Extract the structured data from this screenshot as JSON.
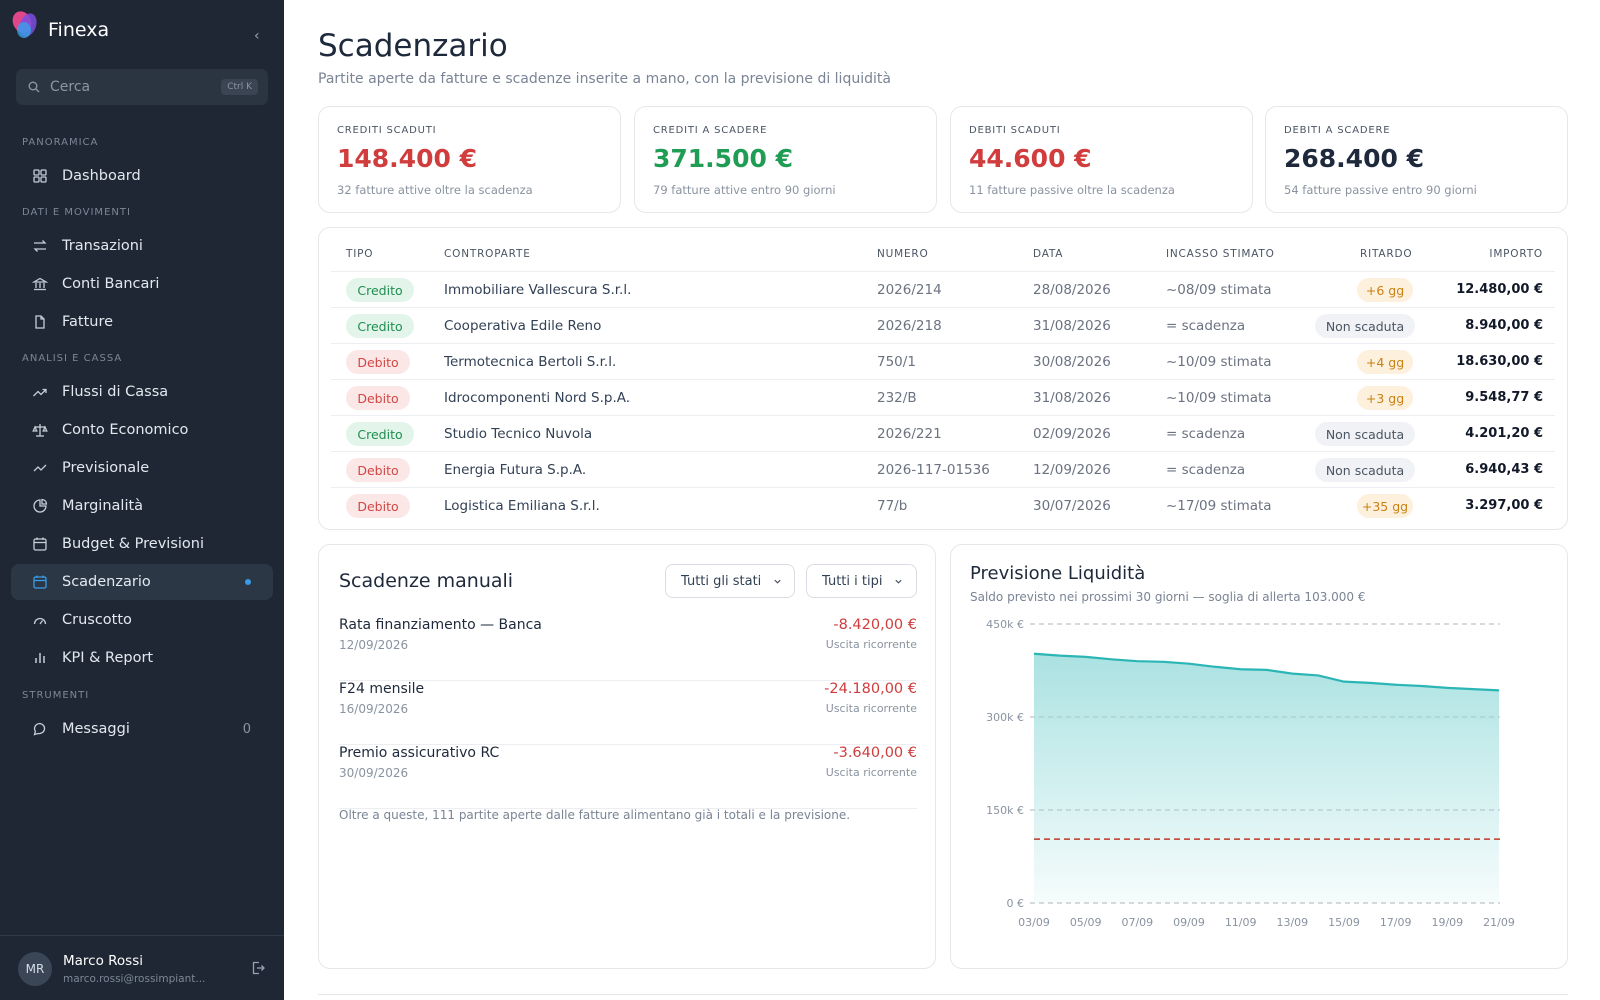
{
  "app": {
    "name": "Finexa"
  },
  "search": {
    "placeholder": "Cerca",
    "shortcut": "Ctrl K"
  },
  "sidebar": {
    "sections": [
      "PANORAMICA",
      "DATI E MOVIMENTI",
      "ANALISI E CASSA",
      "STRUMENTI"
    ],
    "items": [
      {
        "label": "Dashboard",
        "icon": "dashboard-icon"
      },
      {
        "label": "Transazioni",
        "icon": "transfer-icon"
      },
      {
        "label": "Conti Bancari",
        "icon": "bank-icon"
      },
      {
        "label": "Fatture",
        "icon": "document-icon"
      },
      {
        "label": "Flussi di Cassa",
        "icon": "trend-icon"
      },
      {
        "label": "Conto Economico",
        "icon": "scale-icon"
      },
      {
        "label": "Previsionale",
        "icon": "line-chart-icon"
      },
      {
        "label": "Marginalità",
        "icon": "pie-icon"
      },
      {
        "label": "Budget & Previsioni",
        "icon": "calendar-icon"
      },
      {
        "label": "Scadenzario",
        "icon": "calendar-icon",
        "active": true
      },
      {
        "label": "Cruscotto",
        "icon": "gauge-icon"
      },
      {
        "label": "KPI & Report",
        "icon": "bar-chart-icon"
      },
      {
        "label": "Messaggi",
        "icon": "chat-icon",
        "count": "0"
      }
    ]
  },
  "user": {
    "initials": "MR",
    "name": "Marco Rossi",
    "email": "marco.rossi@rossimpiant..."
  },
  "page": {
    "title": "Scadenzario",
    "subtitle": "Partite aperte da fatture e scadenze inserite a mano, con la previsione di liquidità"
  },
  "kpis": [
    {
      "title": "CREDITI SCADUTI",
      "value": "148.400 €",
      "note": "32 fatture attive oltre la scadenza",
      "color": "#d13c3c"
    },
    {
      "title": "CREDITI A SCADERE",
      "value": "371.500 €",
      "note": "79 fatture attive entro 90 giorni",
      "color": "#1f9d55"
    },
    {
      "title": "DEBITI SCADUTI",
      "value": "44.600 €",
      "note": "11 fatture passive oltre la scadenza",
      "color": "#d13c3c"
    },
    {
      "title": "DEBITI A SCADERE",
      "value": "268.400 €",
      "note": "54 fatture passive entro 90 giorni",
      "color": "#1e293b"
    }
  ],
  "table": {
    "headers": [
      "TIPO",
      "CONTROPARTE",
      "NUMERO",
      "DATA",
      "INCASSO STIMATO",
      "RITARDO",
      "IMPORTO"
    ],
    "rows": [
      {
        "tipo": "Credito",
        "controparte": "Immobiliare Vallescura S.r.l.",
        "numero": "2026/214",
        "data": "28/08/2026",
        "stimato": "~08/09 stimata",
        "ritardo": "+6 gg",
        "importo": "12.480,00 €"
      },
      {
        "tipo": "Credito",
        "controparte": "Cooperativa Edile Reno",
        "numero": "2026/218",
        "data": "31/08/2026",
        "stimato": "= scadenza",
        "ritardo": "Non scaduta",
        "importo": "8.940,00 €"
      },
      {
        "tipo": "Debito",
        "controparte": "Termotecnica Bertoli S.r.l.",
        "numero": "750/1",
        "data": "30/08/2026",
        "stimato": "~10/09 stimata",
        "ritardo": "+4 gg",
        "importo": "18.630,00 €"
      },
      {
        "tipo": "Debito",
        "controparte": "Idrocomponenti Nord S.p.A.",
        "numero": "232/B",
        "data": "31/08/2026",
        "stimato": "~10/09 stimata",
        "ritardo": "+3 gg",
        "importo": "9.548,77 €"
      },
      {
        "tipo": "Credito",
        "controparte": "Studio Tecnico Nuvola",
        "numero": "2026/221",
        "data": "02/09/2026",
        "stimato": "= scadenza",
        "ritardo": "Non scaduta",
        "importo": "4.201,20 €"
      },
      {
        "tipo": "Debito",
        "controparte": "Energia Futura S.p.A.",
        "numero": "2026-117-01536",
        "data": "12/09/2026",
        "stimato": "= scadenza",
        "ritardo": "Non scaduta",
        "importo": "6.940,43 €"
      },
      {
        "tipo": "Debito",
        "controparte": "Logistica Emiliana S.r.l.",
        "numero": "77/b",
        "data": "30/07/2026",
        "stimato": "~17/09 stimata",
        "ritardo": "+35 gg",
        "importo": "3.297,00 €"
      }
    ]
  },
  "manual": {
    "title": "Scadenze manuali",
    "filter_status": "Tutti gli stati",
    "filter_type": "Tutti i tipi",
    "items": [
      {
        "name": "Rata finanziamento — Banca",
        "date": "12/09/2026",
        "amount": "-8.420,00 €",
        "type": "Uscita ricorrente"
      },
      {
        "name": "F24 mensile",
        "date": "16/09/2026",
        "amount": "-24.180,00 €",
        "type": "Uscita ricorrente"
      },
      {
        "name": "Premio assicurativo RC",
        "date": "30/09/2026",
        "amount": "-3.640,00 €",
        "type": "Uscita ricorrente"
      }
    ],
    "note": "Oltre a queste, 111 partite aperte dalle fatture alimentano già i totali e la previsione."
  },
  "forecast": {
    "title": "Previsione Liquidità",
    "subtitle": "Saldo previsto nei prossimi 30 giorni — soglia di allerta 103.000 €"
  },
  "chart_data": {
    "type": "area",
    "title": "Previsione Liquidità",
    "x_ticks": [
      "03/09",
      "05/09",
      "07/09",
      "09/09",
      "11/09",
      "13/09",
      "15/09",
      "17/09",
      "19/09",
      "21/09"
    ],
    "y_ticks": [
      "0 €",
      "150k €",
      "300k €",
      "450k €"
    ],
    "ylim": [
      0,
      450000
    ],
    "x_start": "03/09",
    "x_end": "21/09",
    "series": [
      {
        "x": [
          "03/09",
          "04/09",
          "05/09",
          "06/09",
          "07/09",
          "08/09",
          "09/09",
          "10/09",
          "11/09",
          "12/09",
          "13/09",
          "14/09",
          "15/09",
          "16/09",
          "17/09",
          "18/09",
          "19/09",
          "20/09",
          "21/09"
        ],
        "values": [
          402000,
          399000,
          397000,
          393000,
          390000,
          389000,
          386000,
          381000,
          377000,
          376000,
          370000,
          367000,
          357000,
          355000,
          352000,
          350000,
          347000,
          345000,
          343000
        ]
      }
    ],
    "threshold": 103000,
    "colors": {
      "line": "#2bb5b5",
      "fill": "#8fd8d8",
      "threshold": "#c0392b",
      "grid": "#9aa3ad"
    }
  }
}
